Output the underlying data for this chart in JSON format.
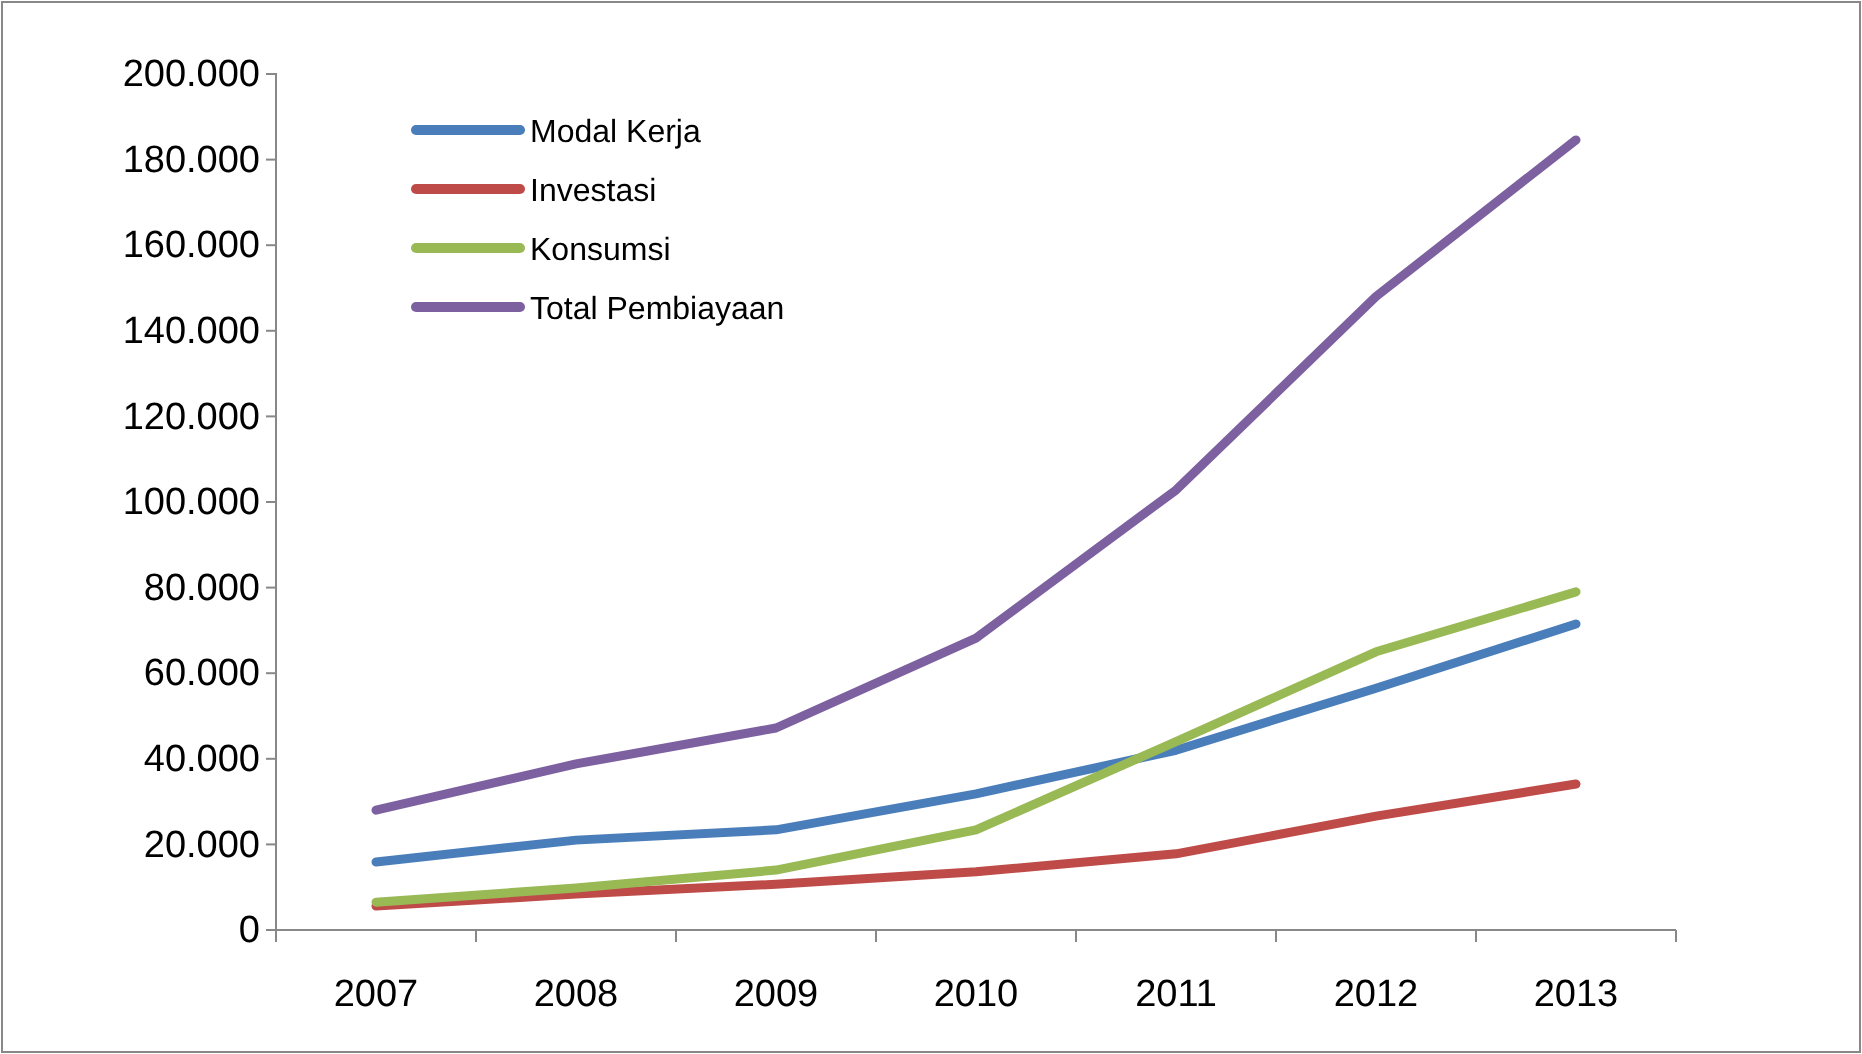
{
  "chart_data": {
    "type": "line",
    "categories": [
      "2007",
      "2008",
      "2009",
      "2010",
      "2011",
      "2012",
      "2013"
    ],
    "series": [
      {
        "name": "Modal Kerja",
        "color": "#4a7ebb",
        "values": [
          15900,
          21000,
          23400,
          31800,
          42000,
          56500,
          71500
        ]
      },
      {
        "name": "Investasi",
        "color": "#be4b48",
        "values": [
          5600,
          8400,
          10700,
          13600,
          17800,
          26600,
          34100
        ]
      },
      {
        "name": "Konsumsi",
        "color": "#98b954",
        "values": [
          6500,
          9800,
          14000,
          23400,
          44000,
          65000,
          79000
        ]
      },
      {
        "name": "Total Pembiayaan",
        "color": "#7d60a0",
        "values": [
          28000,
          38800,
          47200,
          68200,
          102800,
          148000,
          184600
        ]
      }
    ],
    "ylim": [
      0,
      200000
    ],
    "yticks": [
      0,
      {
        "value": 20000,
        "label": "20.000"
      },
      {
        "value": 40000,
        "label": "40.000"
      },
      {
        "value": 60000,
        "label": "60.000"
      },
      {
        "value": 80000,
        "label": "80.000"
      },
      {
        "value": 100000,
        "label": "100.000"
      },
      {
        "value": 120000,
        "label": "120.000"
      },
      {
        "value": 140000,
        "label": "140.000"
      },
      {
        "value": 160000,
        "label": "160.000"
      },
      {
        "value": 180000,
        "label": "180.000"
      },
      {
        "value": 200000,
        "label": "200.000"
      }
    ],
    "grid": false,
    "legend": "top left",
    "marker": "none",
    "line_style": "solid"
  }
}
